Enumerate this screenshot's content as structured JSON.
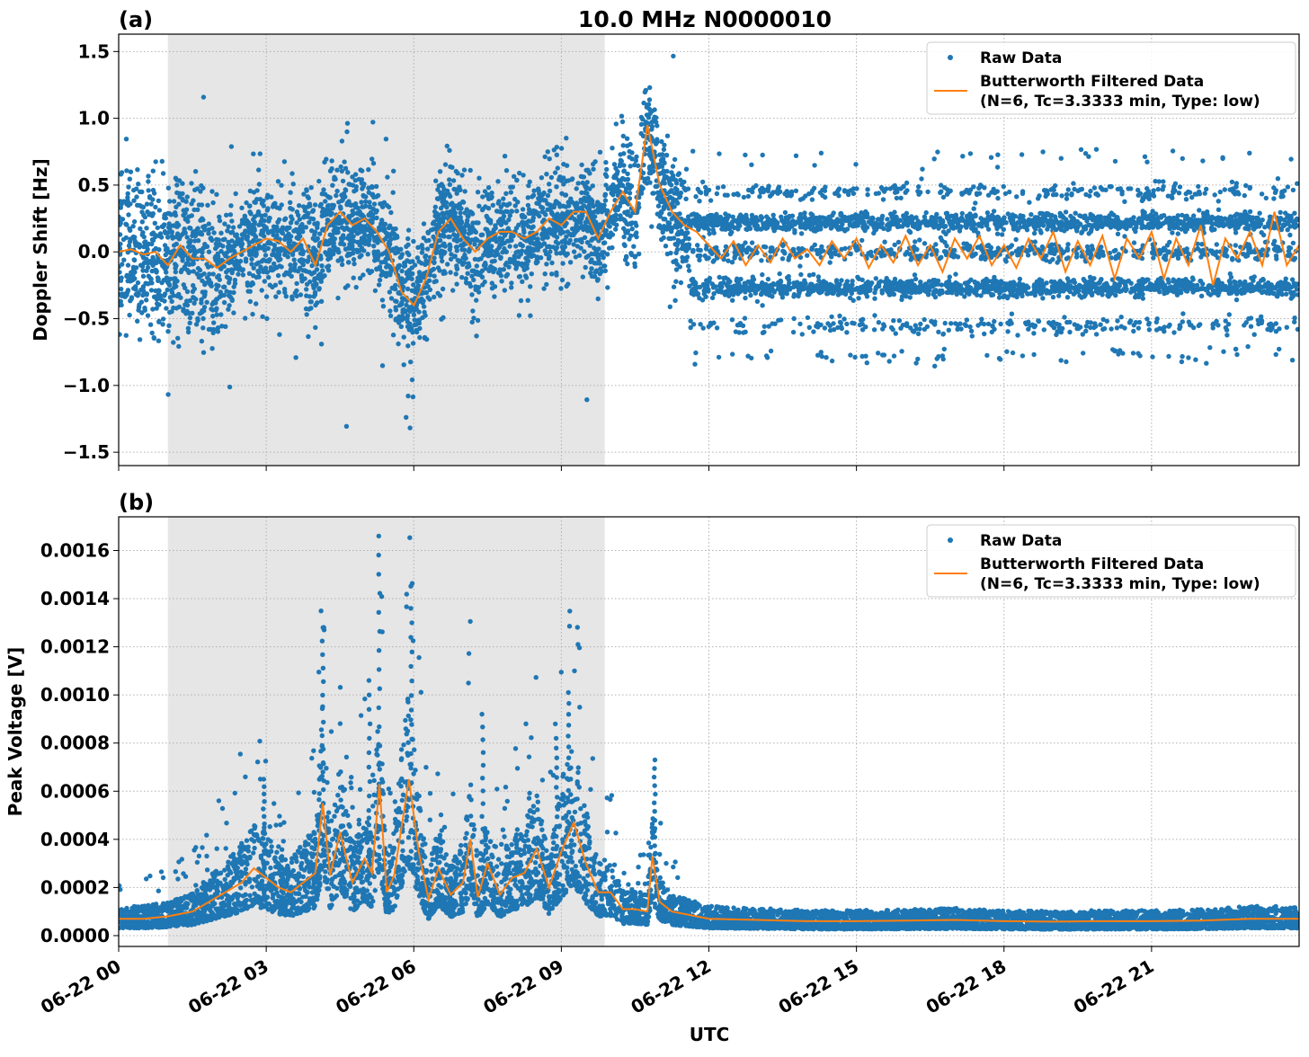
{
  "title": "10.0 MHz N0000010",
  "chart_data": [
    {
      "type": "scatter",
      "panel_label": "(a)",
      "ylabel": "Doppler Shift [Hz]",
      "xlabel": "",
      "xlim": [
        "06-22 00:00",
        "06-23 00:00"
      ],
      "ylim": [
        -1.6,
        1.63
      ],
      "grid": true,
      "legend_placement": "top-right",
      "shaded_interval": [
        "06-22 01:00",
        "06-22 09:53"
      ],
      "x_tick_labels": [
        "06-22 00",
        "06-22 03",
        "06-22 06",
        "06-22 09",
        "06-22 12",
        "06-22 15",
        "06-22 18",
        "06-22 21"
      ],
      "y_ticks": [
        -1.5,
        -1.0,
        -0.5,
        0.0,
        0.5,
        1.0,
        1.5
      ],
      "y_tick_labels": [
        "−1.5",
        "−1.0",
        "−0.5",
        "0.0",
        "0.5",
        "1.0",
        "1.5"
      ],
      "raw_band_levels_after_12utc": [
        0.22,
        -0.27,
        0.0,
        0.45,
        -0.55,
        -0.78,
        0.7
      ],
      "series": [
        {
          "name": "Raw Data",
          "kind": "points",
          "color": "#1f77b4"
        },
        {
          "name": "Butterworth Filtered Data\n(N=6, Tc=3.3333 min, Type: low)",
          "kind": "line",
          "color": "#ff7f0e",
          "x_hours": [
            0,
            0.25,
            0.5,
            0.75,
            1,
            1.25,
            1.5,
            1.75,
            2,
            2.25,
            2.5,
            2.75,
            3,
            3.25,
            3.5,
            3.75,
            4,
            4.25,
            4.5,
            4.75,
            5,
            5.25,
            5.5,
            5.75,
            6,
            6.25,
            6.5,
            6.75,
            7,
            7.25,
            7.5,
            7.75,
            8,
            8.25,
            8.5,
            8.75,
            9,
            9.25,
            9.5,
            9.75,
            10,
            10.25,
            10.5,
            10.75,
            11,
            11.25,
            11.5,
            11.75,
            12,
            12.25,
            12.5,
            12.75,
            13,
            13.25,
            13.5,
            13.75,
            14,
            14.25,
            14.5,
            14.75,
            15,
            15.25,
            15.5,
            15.75,
            16,
            16.25,
            16.5,
            16.75,
            17,
            17.25,
            17.5,
            17.75,
            18,
            18.25,
            18.5,
            18.75,
            19,
            19.25,
            19.5,
            19.75,
            20,
            20.25,
            20.5,
            20.75,
            21,
            21.25,
            21.5,
            21.75,
            22,
            22.25,
            22.5,
            22.75,
            23,
            23.25,
            23.5,
            23.75,
            24
          ],
          "y": [
            0,
            0.02,
            -0.02,
            0,
            -0.1,
            0.05,
            -0.05,
            -0.05,
            -0.12,
            -0.05,
            0,
            0.05,
            0.1,
            0.08,
            0,
            0.1,
            -0.1,
            0.2,
            0.3,
            0.2,
            0.25,
            0.15,
            0,
            -0.3,
            -0.4,
            -0.2,
            0.15,
            0.25,
            0.1,
            0,
            0.1,
            0.15,
            0.15,
            0.1,
            0.15,
            0.25,
            0.2,
            0.3,
            0.3,
            0.1,
            0.3,
            0.45,
            0.3,
            0.95,
            0.5,
            0.3,
            0.2,
            0.15,
            0.05,
            -0.05,
            0.08,
            -0.1,
            0.05,
            -0.08,
            0.1,
            -0.05,
            0.02,
            -0.1,
            0.08,
            -0.05,
            0.1,
            -0.12,
            0.05,
            -0.08,
            0.12,
            -0.1,
            0.05,
            -0.15,
            0.1,
            -0.05,
            0.12,
            -0.1,
            0.05,
            -0.12,
            0.1,
            -0.05,
            0.15,
            -0.15,
            0.08,
            -0.1,
            0.12,
            -0.2,
            0.1,
            -0.05,
            0.15,
            -0.2,
            0.1,
            -0.1,
            0.2,
            -0.25,
            0.1,
            -0.05,
            0.15,
            -0.1,
            0.3,
            -0.1,
            0.05
          ]
        }
      ]
    },
    {
      "type": "scatter",
      "panel_label": "(b)",
      "ylabel": "Peak Voltage [V]",
      "xlabel": "UTC",
      "xlim": [
        "06-22 00:00",
        "06-23 00:00"
      ],
      "ylim": [
        -4.5e-05,
        0.00174
      ],
      "grid": true,
      "legend_placement": "top-right",
      "shaded_interval": [
        "06-22 01:00",
        "06-22 09:53"
      ],
      "x_tick_labels": [
        "06-22 00",
        "06-22 03",
        "06-22 06",
        "06-22 09",
        "06-22 12",
        "06-22 15",
        "06-22 18",
        "06-22 21"
      ],
      "y_ticks": [
        0,
        0.0002,
        0.0004,
        0.0006,
        0.0008,
        0.001,
        0.0012,
        0.0014,
        0.0016
      ],
      "y_tick_labels": [
        "0.0000",
        "0.0002",
        "0.0004",
        "0.0006",
        "0.0008",
        "0.0010",
        "0.0012",
        "0.0014",
        "0.0016"
      ],
      "raw_peaks": [
        [
          2.95,
          0.00065
        ],
        [
          4.15,
          0.00128
        ],
        [
          5.1,
          0.00106
        ],
        [
          5.3,
          0.00166
        ],
        [
          5.95,
          0.00136
        ],
        [
          7.4,
          0.00092
        ],
        [
          8.9,
          0.00082
        ],
        [
          9.15,
          0.00101
        ],
        [
          10.9,
          0.00073
        ]
      ],
      "series": [
        {
          "name": "Raw Data",
          "kind": "points",
          "color": "#1f77b4"
        },
        {
          "name": "Butterworth Filtered Data\n(N=6, Tc=3.3333 min, Type: low)",
          "kind": "line",
          "color": "#ff7f0e",
          "x_hours": [
            0,
            0.5,
            1,
            1.5,
            2,
            2.5,
            2.75,
            3,
            3.25,
            3.5,
            3.75,
            4,
            4.15,
            4.3,
            4.5,
            4.75,
            5,
            5.15,
            5.3,
            5.45,
            5.6,
            5.9,
            6.1,
            6.3,
            6.5,
            6.75,
            7,
            7.15,
            7.3,
            7.5,
            7.75,
            8,
            8.25,
            8.5,
            8.75,
            9,
            9.25,
            9.5,
            9.75,
            10,
            10.25,
            10.5,
            10.75,
            10.85,
            11,
            11.25,
            11.5,
            12,
            13,
            14,
            15,
            16,
            17,
            18,
            19,
            20,
            21,
            22,
            23,
            24
          ],
          "y": [
            7e-05,
            7e-05,
            8e-05,
            0.0001,
            0.00016,
            0.00022,
            0.00028,
            0.00024,
            0.0002,
            0.00018,
            0.00022,
            0.00026,
            0.00055,
            0.00025,
            0.00043,
            0.00022,
            0.00032,
            0.00026,
            0.00063,
            0.00018,
            0.00025,
            0.00065,
            0.00035,
            0.00015,
            0.00028,
            0.00017,
            0.00022,
            0.0004,
            0.00016,
            0.0003,
            0.00017,
            0.00024,
            0.00026,
            0.00036,
            0.0002,
            0.00035,
            0.00047,
            0.0003,
            0.00018,
            0.00018,
            0.00011,
            0.00011,
            0.0001,
            0.00033,
            0.00014,
            0.0001,
            9e-05,
            7e-05,
            6.5e-05,
            6e-05,
            6e-05,
            6.2e-05,
            6.5e-05,
            6e-05,
            5.8e-05,
            6e-05,
            6e-05,
            6.2e-05,
            7e-05,
            7e-05
          ]
        }
      ]
    }
  ]
}
